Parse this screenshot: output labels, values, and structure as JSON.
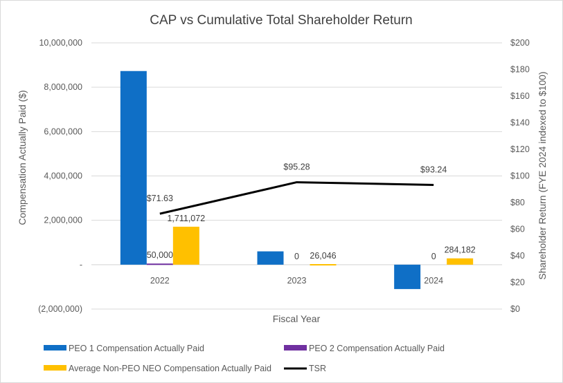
{
  "chart_data": {
    "type": "bar",
    "title": "CAP vs Cumulative Total Shareholder Return",
    "xlabel": "Fiscal Year",
    "ylabel": "Compensation Actually Paid ($)",
    "y2label": "Shareholder Return (FYE 2024 indexed to $100)",
    "categories": [
      "2022",
      "2023",
      "2024"
    ],
    "ylim": [
      -2000000,
      10000000
    ],
    "yticks": [
      -2000000,
      0,
      2000000,
      4000000,
      6000000,
      8000000,
      10000000
    ],
    "ytick_labels": [
      "(2,000,000)",
      "-",
      "2,000,000",
      "4,000,000",
      "6,000,000",
      "8,000,000",
      "10,000,000"
    ],
    "y2lim": [
      0,
      200
    ],
    "y2ticks": [
      0,
      20,
      40,
      60,
      80,
      100,
      120,
      140,
      160,
      180,
      200
    ],
    "y2tick_labels": [
      "$0",
      "$20",
      "$40",
      "$60",
      "$80",
      "$100",
      "$120",
      "$140",
      "$160",
      "$180",
      "$200"
    ],
    "series": [
      {
        "name": "PEO 1 Compensation Actually Paid",
        "kind": "bar",
        "axis": "left",
        "color": "#0f6fc6",
        "values": [
          8730000,
          600000,
          -1100000
        ],
        "labels": [
          "",
          "",
          ""
        ]
      },
      {
        "name": "PEO 2 Compensation Actually Paid",
        "kind": "bar",
        "axis": "left",
        "color": "#7030a0",
        "values": [
          50000,
          0,
          0
        ],
        "labels": [
          "50,000",
          "0",
          "0"
        ]
      },
      {
        "name": "Average Non-PEO NEO Compensation Actually Paid",
        "kind": "bar",
        "axis": "left",
        "color": "#ffc000",
        "values": [
          1711072,
          26046,
          284182
        ],
        "labels": [
          "1,711,072",
          "26,046",
          "284,182"
        ]
      },
      {
        "name": "TSR",
        "kind": "line",
        "axis": "right",
        "color": "#000000",
        "values": [
          71.63,
          95.28,
          93.24
        ],
        "labels": [
          "$71.63",
          "$95.28",
          "$93.24"
        ]
      }
    ],
    "legend": "bottom-left"
  }
}
